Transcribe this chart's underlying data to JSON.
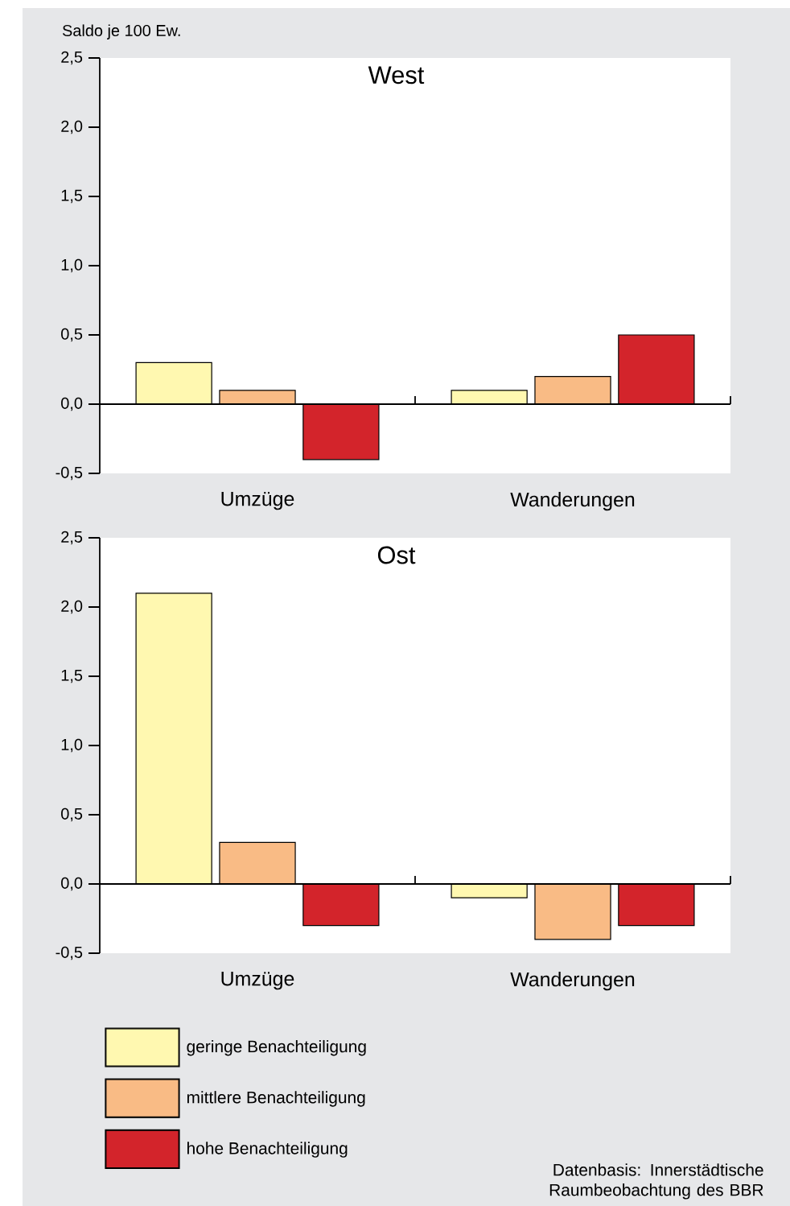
{
  "chart_data": [
    {
      "type": "bar",
      "title": "West",
      "ylabel": "Saldo je 100 Ew.",
      "categories": [
        "Umzüge",
        "Wanderungen"
      ],
      "series": [
        {
          "color": "#fff8b0",
          "values": [
            0.3,
            0.1
          ]
        },
        {
          "color": "#f9bb85",
          "values": [
            0.1,
            0.2
          ]
        },
        {
          "color": "#d3242b",
          "values": [
            -0.4,
            0.5
          ]
        }
      ],
      "ylim": [
        -0.5,
        2.5
      ],
      "yticks": [
        {
          "value": -0.5,
          "label": "-0,5"
        },
        {
          "value": 0,
          "label": "0,0"
        },
        {
          "value": 0.5,
          "label": "0,5"
        },
        {
          "value": 1,
          "label": "1,0"
        },
        {
          "value": 1.5,
          "label": "1,5"
        },
        {
          "value": 2,
          "label": "2,0"
        },
        {
          "value": 2.5,
          "label": "2,5"
        }
      ]
    },
    {
      "type": "bar",
      "title": "Ost",
      "categories": [
        "Umzüge",
        "Wanderungen"
      ],
      "series": [
        {
          "name": "geringe Benachteiligung",
          "color": "#fff8b0",
          "values": [
            2.1,
            -0.1
          ]
        },
        {
          "name": "mittlere Benachteiligung",
          "color": "#f9bb85",
          "values": [
            0.3,
            -0.4
          ]
        },
        {
          "name": "hohe Benachteiligung",
          "color": "#d3242b",
          "values": [
            -0.3,
            -0.3
          ]
        }
      ],
      "ylim": [
        -0.5,
        2.5
      ],
      "yticks": [
        {
          "value": -0.5,
          "label": "-0,5"
        },
        {
          "value": 0,
          "label": "0,0"
        },
        {
          "value": 0.5,
          "label": "0,5"
        },
        {
          "value": 1,
          "label": "1,0"
        },
        {
          "value": 1.5,
          "label": "1,5"
        },
        {
          "value": 2,
          "label": "2,0"
        },
        {
          "value": 2.5,
          "label": "2,5"
        }
      ],
      "legend": "bottom",
      "annotations": [
        "Datenbasis: Innerstädtische Raumbeobachtung des BBR"
      ]
    }
  ]
}
